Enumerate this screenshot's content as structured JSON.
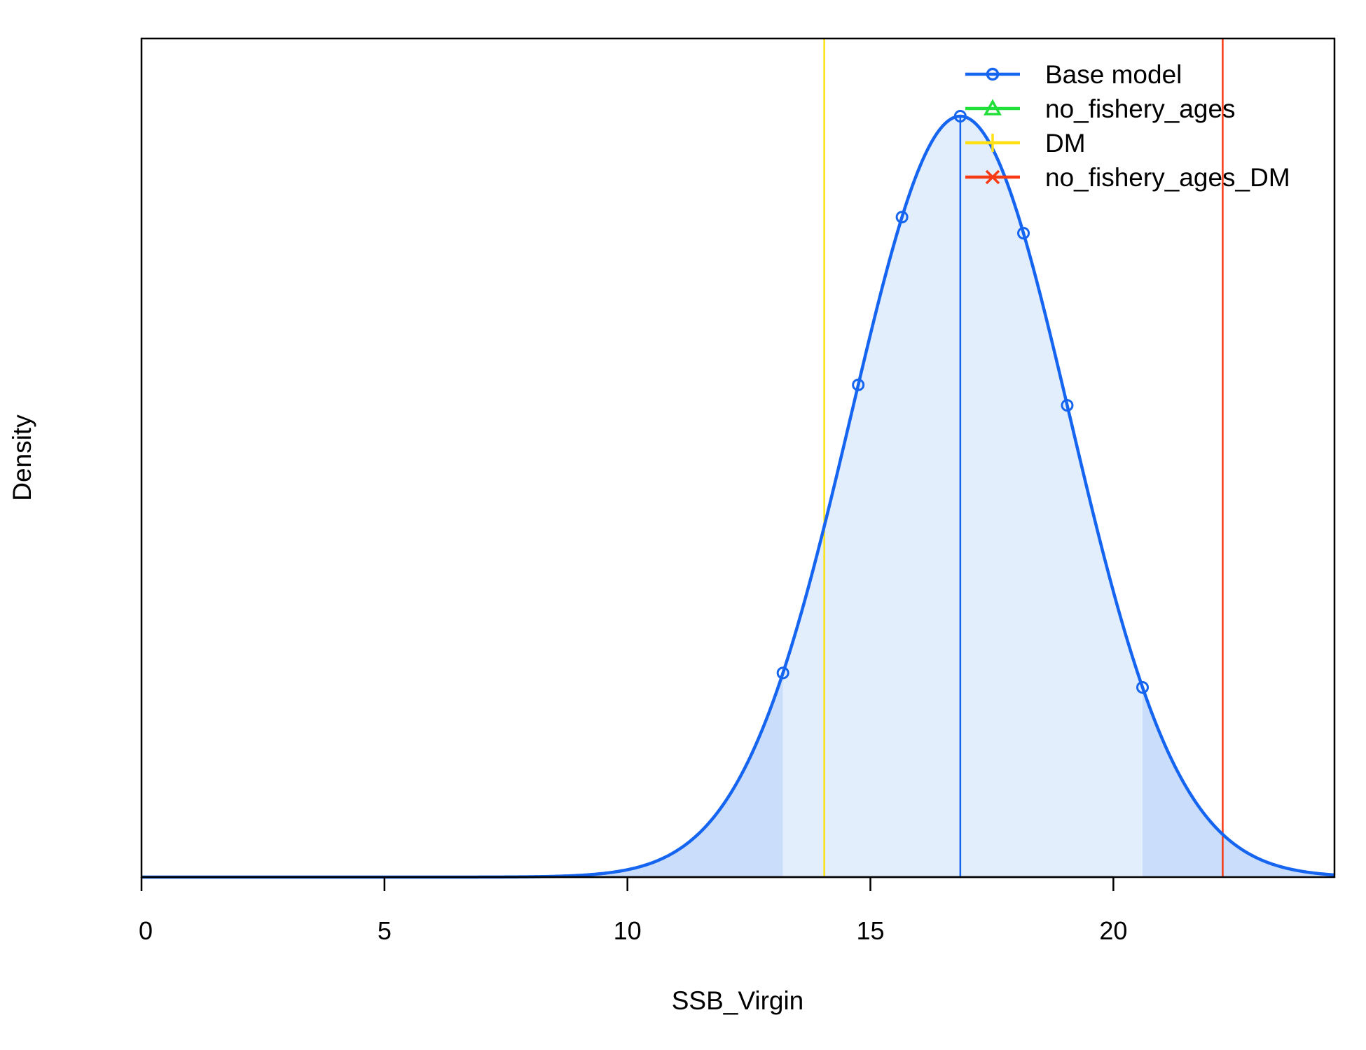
{
  "chart_data": {
    "type": "line",
    "title": "",
    "xlabel": "SSB_Virgin",
    "ylabel": "Density",
    "xlim": [
      0,
      24.55
    ],
    "ylim": [
      0,
      1.0
    ],
    "x_ticks": [
      0,
      5,
      10,
      15,
      20
    ],
    "x_tick_labels": [
      "0",
      "5",
      "10",
      "15",
      "20"
    ],
    "y_ticks_shown": false,
    "grid": false,
    "legend": {
      "placement": "top-right",
      "entries": [
        {
          "label": "Base model",
          "color": "#1565F0",
          "marker": "circle"
        },
        {
          "label": "no_fishery_ages",
          "color": "#22E03A",
          "marker": "triangle"
        },
        {
          "label": "DM",
          "color": "#FFE014",
          "marker": "plus"
        },
        {
          "label": "no_fishery_ages_DM",
          "color": "#F83A14",
          "marker": "cross"
        }
      ]
    },
    "series": [
      {
        "name": "Base model",
        "color": "#1565F0",
        "fill": "#E3EEFC",
        "tail_fill": "#CADDFA",
        "distribution": "normal",
        "mean": 16.85,
        "sd": 2.25,
        "density_max": 1.0,
        "interval_95": [
          13.2,
          20.6
        ],
        "marker_x": [
          13.2,
          14.75,
          15.65,
          16.85,
          18.15,
          19.05,
          20.6
        ]
      }
    ],
    "vertical_lines": [
      {
        "x": 16.85,
        "color": "#1565F0",
        "label": "Base model"
      },
      {
        "x": 14.05,
        "color": "#FFE014",
        "label": "DM"
      },
      {
        "x": 22.25,
        "color": "#F83A14",
        "label": "no_fishery_ages_DM"
      }
    ]
  }
}
